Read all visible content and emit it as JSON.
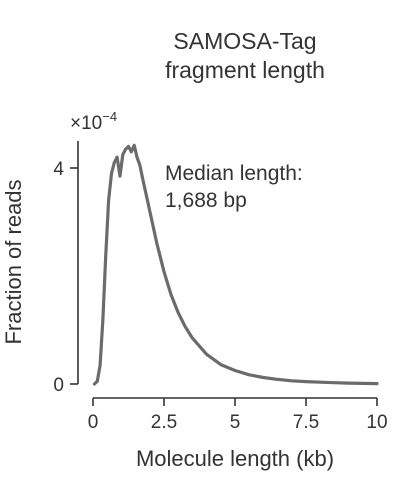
{
  "chart_data": {
    "type": "line",
    "title_lines": [
      "SAMOSA-Tag",
      "fragment length"
    ],
    "xlabel": "Molecule length (kb)",
    "ylabel": "Fraction of reads",
    "y_multiplier": "×10",
    "y_multiplier_exp": "−4",
    "xlim": [
      0,
      10
    ],
    "ylim": [
      0,
      4.5
    ],
    "x_ticks": [
      0,
      2.5,
      5,
      7.5,
      10
    ],
    "x_tick_labels": [
      "0",
      "2.5",
      "5",
      "7.5",
      "10"
    ],
    "y_ticks": [
      0,
      4
    ],
    "y_tick_labels": [
      "0",
      "4"
    ],
    "annotation": [
      "Median length:",
      "1,688 bp"
    ],
    "grid": false,
    "legend": "none",
    "color": "#6b6b6b",
    "series": [
      {
        "x": [
          0.05,
          0.15,
          0.25,
          0.35,
          0.45,
          0.55,
          0.65,
          0.75,
          0.85,
          0.95,
          1.05,
          1.15,
          1.25,
          1.35,
          1.45,
          1.55,
          1.65,
          1.75,
          2.0,
          2.25,
          2.5,
          2.75,
          3.0,
          3.25,
          3.5,
          4.0,
          4.5,
          5.0,
          5.5,
          6.0,
          6.5,
          7.0,
          7.5,
          8.0,
          8.5,
          9.0,
          9.5,
          10.0
        ],
        "y": [
          0.0,
          0.05,
          0.35,
          1.2,
          2.4,
          3.4,
          3.9,
          4.1,
          4.2,
          3.85,
          4.25,
          4.35,
          4.4,
          4.3,
          4.42,
          4.2,
          4.05,
          3.8,
          3.2,
          2.6,
          2.08,
          1.65,
          1.32,
          1.06,
          0.85,
          0.55,
          0.36,
          0.25,
          0.17,
          0.12,
          0.085,
          0.06,
          0.045,
          0.033,
          0.024,
          0.017,
          0.012,
          0.008
        ]
      }
    ]
  }
}
